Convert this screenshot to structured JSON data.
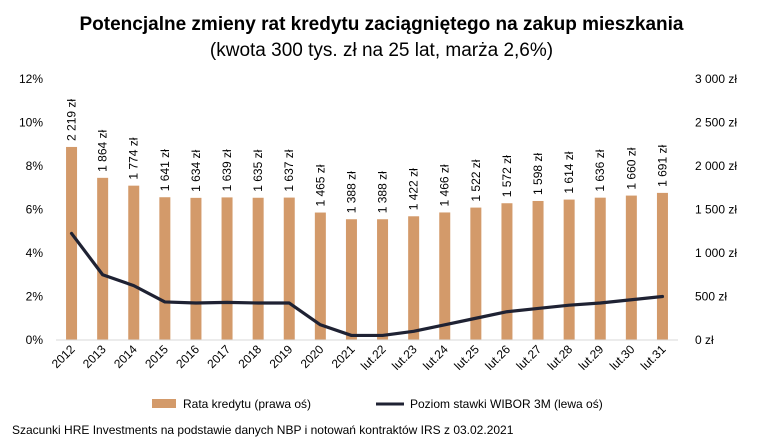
{
  "chart_data": {
    "type": "bar",
    "title": "Potencjalne zmieny rat kredytu zaciągniętego na zakup mieszkania",
    "subtitle": "(kwota 300 tys. zł na 25 lat, marża 2,6%)",
    "categories": [
      "2012",
      "2013",
      "2014",
      "2015",
      "2016",
      "2017",
      "2018",
      "2019",
      "2020",
      "2021",
      "lut.22",
      "lut.23",
      "lut.24",
      "lut.25",
      "lut.26",
      "lut.27",
      "lut.28",
      "lut.29",
      "lut.30",
      "lut.31"
    ],
    "series": [
      {
        "name": "Rata kredytu (prawa oś)",
        "type": "bar",
        "axis": "right",
        "color": "#d39a6a",
        "values": [
          2219,
          1864,
          1774,
          1641,
          1634,
          1639,
          1635,
          1637,
          1465,
          1388,
          1388,
          1422,
          1466,
          1522,
          1572,
          1598,
          1614,
          1636,
          1660,
          1691
        ],
        "labels": [
          "2 219 zł",
          "1 864 zł",
          "1 774 zł",
          "1 641 zł",
          "1 634 zł",
          "1 639 zł",
          "1 635 zł",
          "1 637 zł",
          "1 465 zł",
          "1 388 zł",
          "1 388 zł",
          "1 422 zł",
          "1 466 zł",
          "1 522 zł",
          "1 572 zł",
          "1 598 zł",
          "1 614 zł",
          "1 636 zł",
          "1 660 zł",
          "1 691 zł"
        ]
      },
      {
        "name": "Poziom stawki WIBOR 3M (lewa oś)",
        "type": "line",
        "axis": "left",
        "color": "#1f2233",
        "values": [
          4.9,
          3.0,
          2.5,
          1.75,
          1.7,
          1.73,
          1.7,
          1.7,
          0.7,
          0.21,
          0.21,
          0.4,
          0.7,
          1.0,
          1.3,
          1.45,
          1.6,
          1.7,
          1.85,
          2.0
        ]
      }
    ],
    "left_axis": {
      "min": 0,
      "max": 12,
      "ticks": [
        "0%",
        "2%",
        "4%",
        "6%",
        "8%",
        "10%",
        "12%"
      ]
    },
    "right_axis": {
      "min": 0,
      "max": 3000,
      "ticks": [
        "0 zł",
        "500 zł",
        "1 000 zł",
        "1 500 zł",
        "2 000 zł",
        "2 500 zł",
        "3 000 zł"
      ]
    },
    "grid": false,
    "legend": "bottom"
  },
  "source_note": "Szacunki HRE Investments na podstawie danych NBP i notowań kontraktów IRS z 03.02.2021"
}
